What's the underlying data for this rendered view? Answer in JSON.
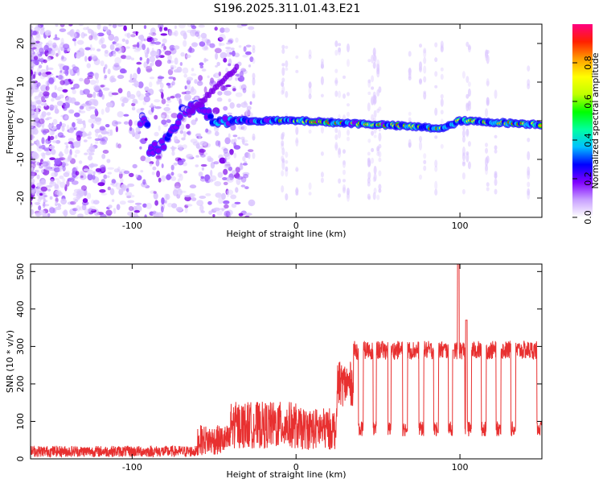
{
  "title": "S196.2025.311.01.43.E21",
  "chart_data": [
    {
      "type": "heatmap",
      "xlabel": "Height of straight line (km)",
      "ylabel": "Frequency (Hz)",
      "xlim": [
        -162,
        150
      ],
      "ylim": [
        -25,
        25
      ],
      "xticks": [
        -100,
        0,
        100
      ],
      "yticks": [
        -20,
        -10,
        0,
        10,
        20
      ],
      "grid": false,
      "colorbar": {
        "label": "Normalized spectral amplitude",
        "range": [
          0,
          1
        ],
        "ticks": [
          "0.0",
          "0.2",
          "0.4",
          "0.6",
          "0.8"
        ],
        "tick_values": [
          0.0,
          0.2,
          0.4,
          0.6,
          0.8
        ],
        "colors": [
          "#ffffff",
          "#c8a0ff",
          "#8000ff",
          "#0000ff",
          "#00c0ff",
          "#00ffa0",
          "#00ff00",
          "#c0ff00",
          "#ffff00",
          "#ffa000",
          "#ff2000",
          "#ff0080"
        ]
      },
      "ridge": {
        "description_points": [
          [
            -90,
            -8
          ],
          [
            -78,
            -5
          ],
          [
            -70,
            2
          ],
          [
            -60,
            4
          ],
          [
            -50,
            0
          ],
          [
            -30,
            0
          ],
          [
            0,
            0
          ],
          [
            50,
            -1
          ],
          [
            90,
            -2
          ],
          [
            100,
            0
          ],
          [
            150,
            -1
          ]
        ]
      }
    },
    {
      "type": "line",
      "xlabel": "Height of straight line (km)",
      "ylabel": "SNR (10 * v/v)",
      "xlim": [
        -162,
        150
      ],
      "ylim": [
        0,
        520
      ],
      "xticks": [
        -100,
        0,
        100
      ],
      "yticks": [
        0,
        100,
        200,
        300,
        400,
        500
      ],
      "grid": false,
      "color": "#e83030",
      "segments": [
        {
          "x": [
            -162,
            -60
          ],
          "level": 20,
          "noise": 15
        },
        {
          "x": [
            -60,
            -40
          ],
          "level": 50,
          "noise": 40
        },
        {
          "x": [
            -40,
            0
          ],
          "level": 90,
          "noise": 70
        },
        {
          "x": [
            0,
            25
          ],
          "level": 80,
          "noise": 60
        },
        {
          "x": [
            25,
            35
          ],
          "level": 200,
          "noise": 60
        },
        {
          "x": [
            35,
            150
          ],
          "level": 290,
          "noise": 25
        }
      ],
      "dropouts": [
        [
          38,
          41
        ],
        [
          47,
          49
        ],
        [
          56,
          58
        ],
        [
          65,
          68
        ],
        [
          75,
          78
        ],
        [
          84,
          87
        ],
        [
          93,
          96
        ],
        [
          103,
          107
        ],
        [
          113,
          116
        ],
        [
          122,
          125
        ],
        [
          131,
          134
        ],
        [
          147,
          150
        ]
      ],
      "spikes": [
        [
          99,
          520
        ],
        [
          104,
          370
        ],
        [
          96,
          290
        ]
      ]
    }
  ]
}
